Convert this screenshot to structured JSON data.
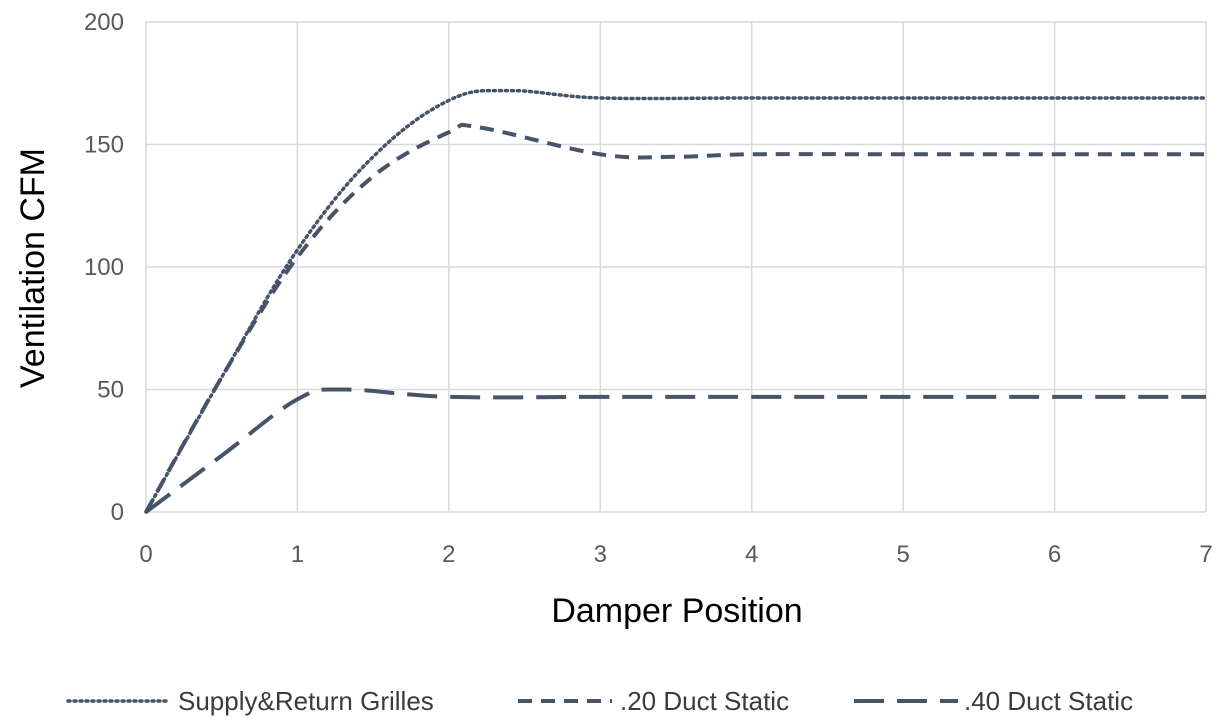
{
  "chart_data": {
    "type": "line",
    "title": "",
    "xlabel": "Damper Position",
    "ylabel": "Ventilation CFM",
    "xlim": [
      0,
      7
    ],
    "ylim": [
      0,
      200
    ],
    "x_ticks": [
      "0",
      "1",
      "2",
      "3",
      "4",
      "5",
      "6",
      "7"
    ],
    "y_ticks": [
      "0",
      "50",
      "100",
      "150",
      "200"
    ],
    "grid": true,
    "legend_position": "bottom",
    "series": [
      {
        "name": "Supply&Return Grilles",
        "style": "dotted",
        "color": "#44546a",
        "x": [
          0,
          0.5,
          1,
          1.5,
          2,
          2.4,
          3,
          4,
          5,
          6,
          7
        ],
        "y": [
          0,
          55,
          107,
          145,
          168,
          172,
          169,
          169,
          169,
          169,
          169
        ]
      },
      {
        "name": ".20 Duct Static",
        "style": "dashed",
        "color": "#44546a",
        "x": [
          0,
          0.5,
          1,
          1.5,
          2,
          2.2,
          3,
          3.5,
          4,
          5,
          6,
          7
        ],
        "y": [
          0,
          55,
          104,
          137,
          155,
          157,
          146,
          145,
          146,
          146,
          146,
          146
        ]
      },
      {
        "name": ".40 Duct Static",
        "style": "long-dashed",
        "color": "#44546a",
        "x": [
          0,
          0.5,
          1,
          1.3,
          2,
          3,
          4,
          5,
          6,
          7
        ],
        "y": [
          0,
          23,
          46,
          50,
          47,
          47,
          47,
          47,
          47,
          47
        ]
      }
    ]
  }
}
